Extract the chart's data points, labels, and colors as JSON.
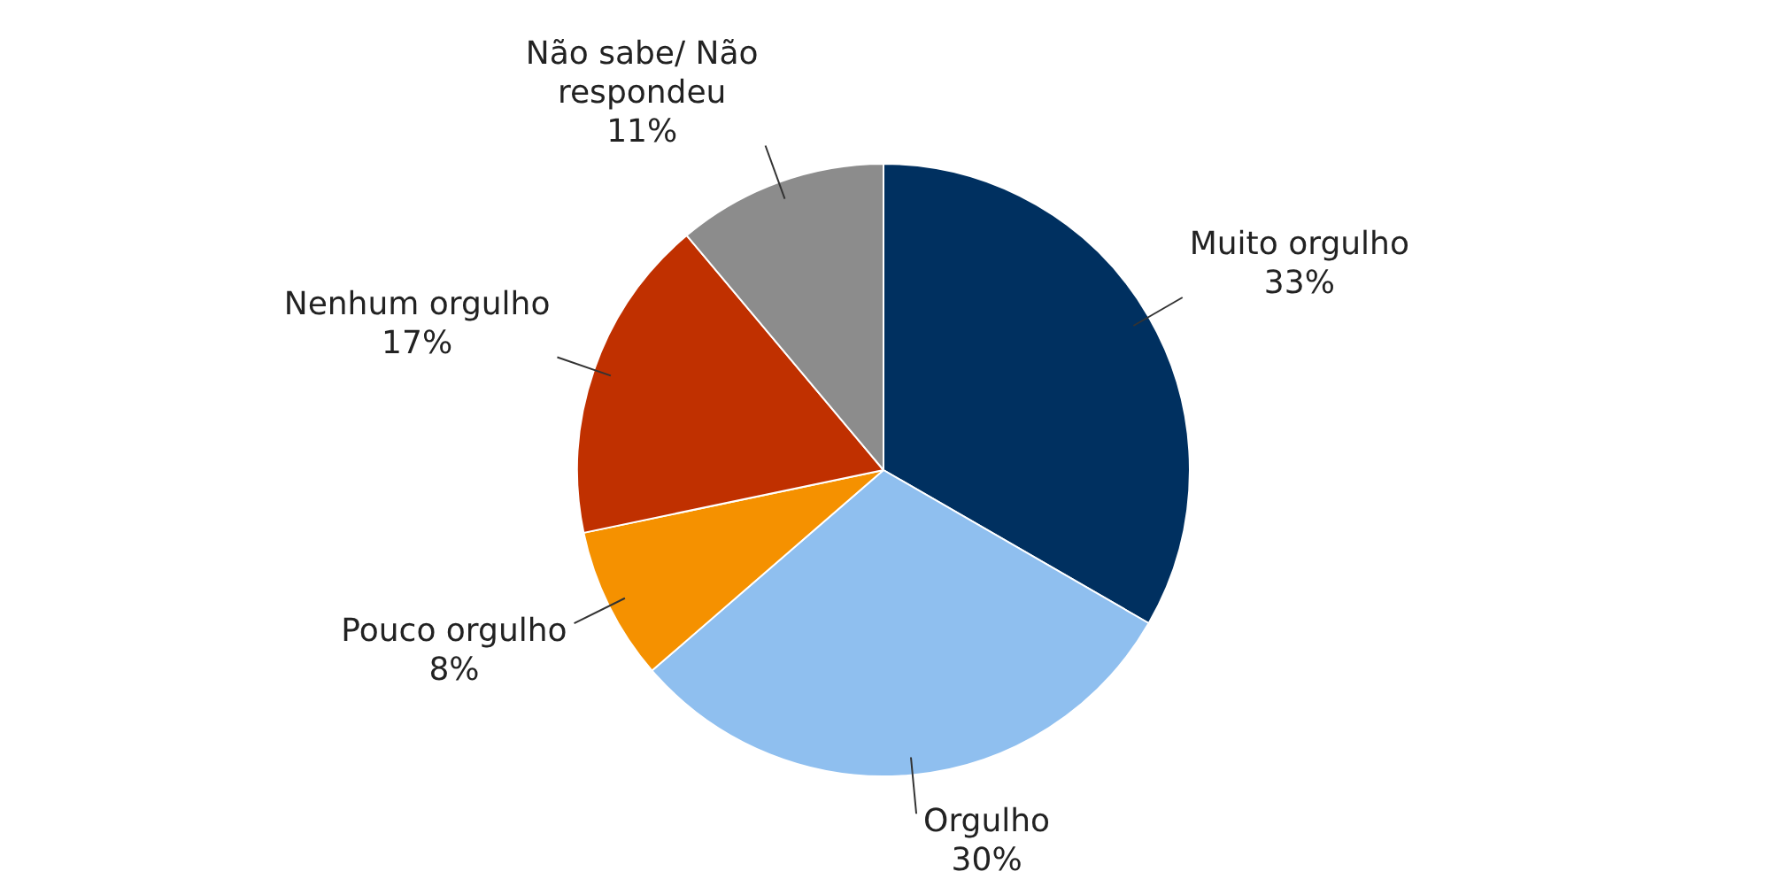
{
  "chart_data": {
    "type": "pie",
    "categories": [
      "Muito orgulho",
      "Orgulho",
      "Pouco orgulho",
      "Nenhum orgulho",
      "Não sabe/ Não respondeu"
    ],
    "values": [
      33,
      30,
      8,
      17,
      11
    ],
    "value_labels": [
      "33%",
      "30%",
      "8%",
      "17%",
      "11%"
    ],
    "colors": [
      "#003060",
      "#8fbfef",
      "#f59100",
      "#c03000",
      "#8c8c8c"
    ],
    "legend": false
  }
}
